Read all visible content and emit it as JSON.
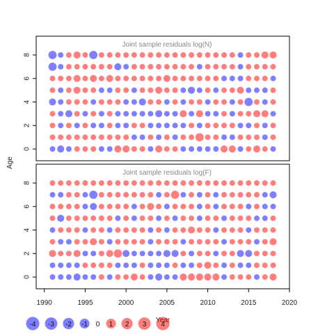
{
  "chart_data": {
    "type": "scatter",
    "subtype": "bubble-residuals",
    "ylabel": "Age",
    "xlabel": "Year",
    "x_range": [
      1989,
      2020
    ],
    "x_ticks": [
      1990,
      1995,
      2000,
      2005,
      2010,
      2015,
      2020
    ],
    "x_tick_labels": [
      "1990",
      "1995",
      "2000",
      "2005",
      "2010",
      "2015",
      "2020"
    ],
    "y_ticks": [
      0,
      2,
      4,
      6,
      8
    ],
    "y_tick_labels": [
      "0",
      "2",
      "4",
      "6",
      "8"
    ],
    "y_range": [
      -1,
      9.6
    ],
    "years": [
      1991,
      1992,
      1993,
      1994,
      1995,
      1996,
      1997,
      1998,
      1999,
      2000,
      2001,
      2002,
      2003,
      2004,
      2005,
      2006,
      2007,
      2008,
      2009,
      2010,
      2011,
      2012,
      2013,
      2014,
      2015,
      2016,
      2017,
      2018
    ],
    "ages": [
      0,
      1,
      2,
      3,
      4,
      5,
      6,
      7,
      8
    ],
    "colors": {
      "positive": "#ff0000",
      "negative": "#0000ff",
      "opacity": 0.5
    },
    "panels": [
      {
        "title": "Joint sample residuals log(N)",
        "residuals": [
          [
            -1,
            -2,
            -1,
            1,
            1,
            1,
            -1,
            -1,
            2,
            2,
            1,
            1,
            -1,
            2,
            1,
            1,
            -1,
            -1,
            -1,
            -1,
            -1,
            2,
            2,
            -1,
            1,
            2,
            1,
            -1
          ],
          [
            1,
            1,
            1,
            1,
            1,
            1,
            1,
            1,
            1,
            1,
            -1,
            -1,
            1,
            -1,
            1,
            -1,
            1,
            1,
            3,
            1,
            1,
            -1,
            -1,
            1,
            1,
            1,
            -1,
            1
          ],
          [
            1,
            -1,
            1,
            -1,
            1,
            -1,
            -1,
            1,
            -1,
            -1,
            1,
            1,
            -1,
            -1,
            -1,
            -1,
            -1,
            1,
            -1,
            1,
            1,
            1,
            1,
            -1,
            -1,
            1,
            -1,
            1
          ],
          [
            1,
            -1,
            -2,
            1,
            -1,
            1,
            -1,
            1,
            -1,
            -1,
            -1,
            -1,
            -1,
            -2,
            -1,
            -1,
            2,
            -1,
            2,
            -1,
            -1,
            1,
            -1,
            1,
            1,
            2,
            2,
            -1
          ],
          [
            -2,
            -1,
            1,
            1,
            1,
            -1,
            1,
            1,
            1,
            -1,
            -1,
            -2,
            1,
            1,
            -1,
            1,
            -1,
            1,
            1,
            -1,
            1,
            1,
            -1,
            1,
            -3,
            1,
            -1,
            1
          ],
          [
            1,
            -1,
            1,
            2,
            1,
            1,
            -1,
            -1,
            1,
            1,
            -1,
            1,
            1,
            2,
            1,
            1,
            -1,
            -2,
            -1,
            1,
            -1,
            1,
            1,
            2,
            -1,
            -1,
            -1,
            1
          ],
          [
            1,
            1,
            1,
            2,
            1,
            2,
            1,
            2,
            1,
            1,
            1,
            1,
            1,
            1,
            2,
            1,
            1,
            1,
            1,
            1,
            1,
            -1,
            -1,
            -1,
            1,
            1,
            1,
            -1
          ],
          [
            -3,
            -1,
            1,
            1,
            1,
            1,
            1,
            1,
            -2,
            -1,
            1,
            1,
            1,
            1,
            1,
            1,
            1,
            1,
            -1,
            1,
            1,
            1,
            1,
            -1,
            1,
            1,
            1,
            1
          ],
          [
            -3,
            -1,
            1,
            2,
            1,
            -3,
            1,
            1,
            1,
            1,
            1,
            1,
            1,
            1,
            1,
            1,
            1,
            1,
            1,
            1,
            1,
            1,
            1,
            -1,
            1,
            1,
            2,
            2
          ]
        ]
      },
      {
        "title": "Joint sample residuals log(F)",
        "residuals": [
          [
            -1,
            -1,
            -1,
            -2,
            -1,
            -1,
            1,
            -1,
            1,
            1,
            2,
            1,
            -1,
            -2,
            -1,
            -1,
            2,
            2,
            2,
            2,
            2,
            -1,
            1,
            1,
            1,
            -1,
            1,
            2
          ],
          [
            -1,
            -1,
            -1,
            -1,
            1,
            1,
            1,
            1,
            -1,
            -1,
            -1,
            1,
            -1,
            -1,
            -1,
            1,
            -1,
            -1,
            1,
            2,
            1,
            -1,
            1,
            -1,
            -1,
            1,
            1,
            1
          ],
          [
            2,
            1,
            1,
            2,
            -1,
            -1,
            1,
            2,
            3,
            -2,
            -1,
            -1,
            -1,
            -1,
            -2,
            -2,
            1,
            -1,
            1,
            1,
            -1,
            1,
            1,
            -2,
            -2,
            1,
            1,
            1
          ],
          [
            1,
            -1,
            -1,
            1,
            1,
            2,
            1,
            -1,
            1,
            1,
            1,
            1,
            -1,
            1,
            1,
            1,
            -1,
            1,
            1,
            1,
            1,
            -1,
            1,
            1,
            1,
            -1,
            1,
            2
          ],
          [
            -1,
            1,
            1,
            1,
            -1,
            1,
            1,
            -1,
            1,
            1,
            1,
            1,
            -1,
            1,
            -1,
            1,
            1,
            2,
            1,
            1,
            -1,
            1,
            1,
            1,
            -1,
            1,
            1,
            1
          ],
          [
            1,
            -2,
            1,
            1,
            1,
            1,
            1,
            1,
            -1,
            1,
            -1,
            1,
            1,
            -1,
            1,
            -1,
            1,
            1,
            -1,
            1,
            1,
            -1,
            1,
            1,
            1,
            -1,
            -1,
            1
          ],
          [
            1,
            1,
            1,
            1,
            -1,
            -2,
            1,
            1,
            1,
            1,
            -1,
            1,
            2,
            1,
            -1,
            1,
            1,
            1,
            -1,
            1,
            -1,
            1,
            1,
            1,
            -1,
            1,
            -1,
            -1
          ],
          [
            -1,
            -1,
            1,
            1,
            -1,
            -3,
            1,
            1,
            1,
            1,
            1,
            1,
            1,
            -1,
            1,
            3,
            -1,
            1,
            -1,
            1,
            -1,
            1,
            1,
            1,
            1,
            1,
            -1,
            -2
          ],
          [
            1,
            1,
            1,
            1,
            1,
            1,
            1,
            1,
            1,
            1,
            1,
            1,
            1,
            1,
            1,
            1,
            1,
            1,
            1,
            1,
            1,
            1,
            1,
            1,
            1,
            1,
            1,
            1
          ]
        ]
      }
    ],
    "legend": {
      "placement": "bottom-left",
      "values": [
        -4,
        -3,
        -2,
        -1,
        0,
        1,
        2,
        3,
        4
      ],
      "labels": [
        "-4",
        "-3",
        "-2",
        "-1",
        "0",
        "1",
        "2",
        "3",
        "4"
      ]
    }
  }
}
